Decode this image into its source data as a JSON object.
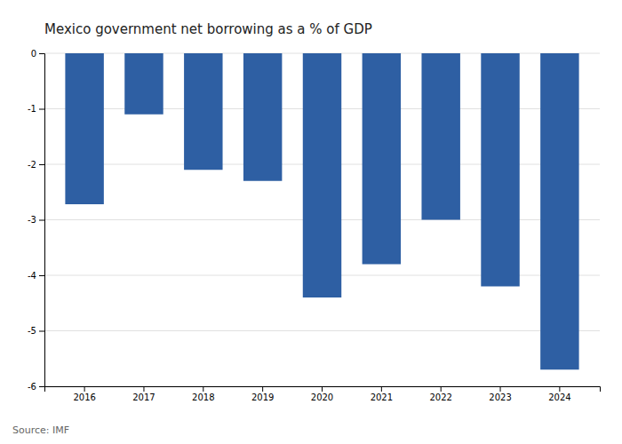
{
  "chart_data": {
    "type": "bar",
    "title": "Mexico government net borrowing as a % of GDP",
    "categories": [
      "2016",
      "2017",
      "2018",
      "2019",
      "2020",
      "2021",
      "2022",
      "2023",
      "2024"
    ],
    "values": [
      -2.72,
      -1.1,
      -2.1,
      -2.3,
      -4.4,
      -3.8,
      -3.0,
      -4.2,
      -5.7
    ],
    "color": "#2e5fa3",
    "ylim": [
      -6,
      0
    ],
    "yticks": [
      0,
      -1,
      -2,
      -3,
      -4,
      -5,
      -6
    ],
    "grid": true,
    "annotations": [
      "Source: IMF"
    ]
  }
}
